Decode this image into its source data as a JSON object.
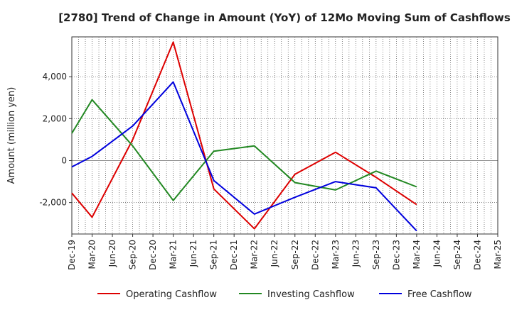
{
  "chart_data": {
    "type": "line",
    "title": "[2780]  Trend of Change in Amount (YoY) of 12Mo Moving Sum of Cashflows",
    "xlabel": "",
    "ylabel": "Amount (million yen)",
    "categories": [
      "Dec-19",
      "Mar-20",
      "Jun-20",
      "Sep-20",
      "Dec-20",
      "Mar-21",
      "Jun-21",
      "Sep-21",
      "Dec-21",
      "Mar-22",
      "Jun-22",
      "Sep-22",
      "Dec-22",
      "Mar-23",
      "Jun-23",
      "Sep-23",
      "Dec-23",
      "Mar-24",
      "Jun-24",
      "Sep-24",
      "Dec-24",
      "Mar-25"
    ],
    "ylim": [
      -3500,
      5900
    ],
    "yticks": [
      -2000,
      0,
      2000,
      4000
    ],
    "ytick_labels": [
      "-2,000",
      "0",
      "2,000",
      "4,000"
    ],
    "series": [
      {
        "name": "Operating Cashflow",
        "color": "#dd0000",
        "values": [
          -1550,
          -2700,
          null,
          1000,
          null,
          5650,
          null,
          -1350,
          null,
          -3250,
          null,
          -650,
          null,
          400,
          null,
          -800,
          null,
          -2100,
          null,
          null,
          null,
          null
        ]
      },
      {
        "name": "Investing Cashflow",
        "color": "#228822",
        "values": [
          1300,
          2900,
          null,
          700,
          null,
          -1900,
          null,
          450,
          null,
          700,
          null,
          -1050,
          null,
          -1400,
          null,
          -500,
          null,
          -1250,
          null,
          null,
          null,
          null
        ]
      },
      {
        "name": "Free Cashflow",
        "color": "#0000dd",
        "values": [
          -300,
          200,
          null,
          1650,
          null,
          3750,
          null,
          -950,
          null,
          -2550,
          null,
          -1750,
          null,
          -1000,
          null,
          -1300,
          null,
          -3350,
          null,
          null,
          null,
          null
        ]
      }
    ]
  }
}
